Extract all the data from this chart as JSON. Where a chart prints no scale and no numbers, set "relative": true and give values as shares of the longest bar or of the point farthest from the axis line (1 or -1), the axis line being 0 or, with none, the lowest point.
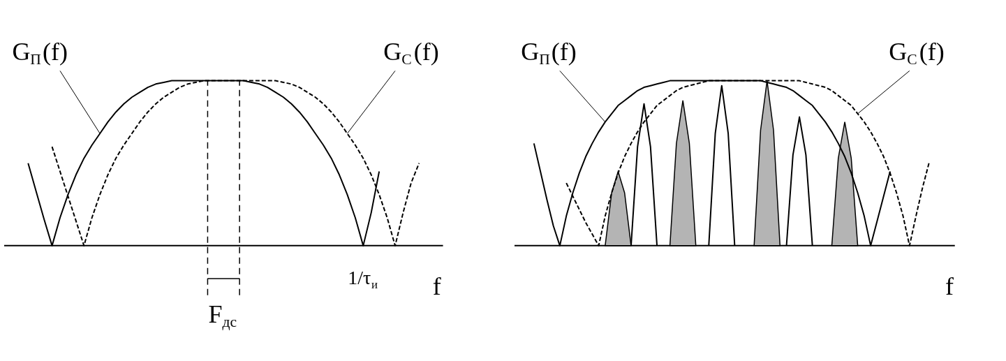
{
  "chart_data": [
    {
      "type": "line",
      "relative": true,
      "xlabel": "f",
      "categories": [
        null,
        null,
        null,
        null,
        null,
        null,
        null,
        null,
        null,
        null,
        null,
        null,
        null,
        null,
        null,
        null,
        null,
        null,
        null,
        null,
        null,
        null,
        null,
        null,
        null,
        null,
        null,
        null,
        null,
        null,
        null,
        null,
        null,
        null,
        null,
        null,
        null,
        null,
        null,
        null,
        null,
        null,
        null,
        null,
        null,
        null,
        null,
        null,
        null,
        null
      ],
      "series": [
        {
          "name": "G$_{П}$(f)",
          "color": "#000000",
          "line_style": "solid",
          "values": [
            0.5,
            0.33,
            0.16,
            0,
            0.17,
            0.31,
            0.43,
            0.53,
            0.61,
            0.68,
            0.75,
            0.81,
            0.86,
            0.9,
            0.93,
            0.96,
            0.98,
            0.99,
            1,
            1,
            1,
            1,
            1,
            1,
            1,
            1,
            1,
            1,
            0.99,
            0.98,
            0.96,
            0.93,
            0.9,
            0.86,
            0.81,
            0.75,
            0.68,
            0.61,
            0.53,
            0.43,
            0.31,
            0.17,
            0,
            0.2,
            0.45,
            null,
            null,
            null,
            null,
            null
          ]
        },
        {
          "name": "G$_{С}$(f)",
          "color": "#000000",
          "line_style": "dashed",
          "values": [
            null,
            null,
            null,
            0.6,
            0.45,
            0.3,
            0.15,
            0,
            0.17,
            0.31,
            0.43,
            0.53,
            0.61,
            0.68,
            0.75,
            0.81,
            0.86,
            0.9,
            0.93,
            0.96,
            0.98,
            0.99,
            1,
            1,
            1,
            1,
            1,
            1,
            1,
            1,
            1,
            1,
            0.99,
            0.98,
            0.96,
            0.93,
            0.9,
            0.86,
            0.81,
            0.75,
            0.68,
            0.61,
            0.53,
            0.43,
            0.31,
            0.17,
            0,
            0.2,
            0.38,
            0.5
          ]
        }
      ],
      "annotations": [
        "1/τ$_{и}$",
        "F$_{дс}$"
      ]
    },
    {
      "type": "line",
      "relative": true,
      "xlabel": "f",
      "categories": [
        null,
        null,
        null,
        null,
        null,
        null,
        null,
        null,
        null,
        null,
        null,
        null,
        null,
        null,
        null,
        null,
        null,
        null,
        null,
        null,
        null,
        null,
        null,
        null,
        null,
        null,
        null,
        null,
        null,
        null,
        null,
        null,
        null,
        null,
        null,
        null,
        null,
        null,
        null,
        null,
        null,
        null,
        null,
        null,
        null,
        null,
        null,
        null,
        null,
        null,
        null,
        null,
        null,
        null,
        null,
        null,
        null,
        null,
        null,
        null,
        null,
        null,
        null
      ],
      "series": [
        {
          "name": "G$_{П}$(f)",
          "color": "#000000",
          "line_style": "solid",
          "values": [
            0.62,
            0.45,
            0.28,
            0.12,
            0,
            0.18,
            0.32,
            0.44,
            0.54,
            0.62,
            0.69,
            0.75,
            0.8,
            0.85,
            0.88,
            0.91,
            0.94,
            0.96,
            0.97,
            0.98,
            0.99,
            1,
            1,
            1,
            1,
            1,
            1,
            1,
            1,
            1,
            1,
            1,
            1,
            1,
            1,
            1,
            0.99,
            0.98,
            0.97,
            0.96,
            0.94,
            0.91,
            0.88,
            0.85,
            0.8,
            0.75,
            0.69,
            0.62,
            0.54,
            0.44,
            0.32,
            0.18,
            0,
            0.15,
            0.3,
            0.45,
            null,
            null,
            null,
            null,
            null,
            null,
            null
          ]
        },
        {
          "name": "G$_{С}$(f)",
          "color": "#000000",
          "line_style": "dashed",
          "values": [
            null,
            null,
            null,
            null,
            null,
            0.38,
            0.3,
            0.22,
            0.14,
            0.07,
            0,
            0.18,
            0.32,
            0.44,
            0.54,
            0.62,
            0.69,
            0.75,
            0.8,
            0.85,
            0.88,
            0.91,
            0.94,
            0.96,
            0.97,
            0.98,
            0.99,
            1,
            1,
            1,
            1,
            1,
            1,
            1,
            1,
            1,
            1,
            1,
            1,
            1,
            1,
            1,
            0.99,
            0.98,
            0.97,
            0.96,
            0.94,
            0.91,
            0.88,
            0.85,
            0.8,
            0.75,
            0.69,
            0.62,
            0.54,
            0.44,
            0.32,
            0.18,
            0,
            0.18,
            0.35,
            0.5,
            null
          ]
        },
        {
          "type": "area",
          "color": "#b4b4b4",
          "values": [
            null,
            null,
            null,
            null,
            null,
            null,
            null,
            null,
            null,
            null,
            null,
            0,
            0.32,
            0.45,
            0.32,
            0,
            null,
            null,
            null,
            null,
            null,
            0,
            0.62,
            0.88,
            0.62,
            0,
            null,
            null,
            null,
            null,
            null,
            null,
            null,
            null,
            0,
            0.7,
            1,
            0.7,
            0,
            null,
            null,
            null,
            null,
            null,
            null,
            null,
            0,
            0.53,
            0.75,
            0.53,
            0,
            null,
            null,
            null,
            null,
            null,
            null,
            null,
            null,
            null,
            null,
            null,
            null
          ]
        },
        {
          "type": "line",
          "color": "#000000",
          "line_style": "solid",
          "values": [
            null,
            null,
            null,
            null,
            null,
            null,
            null,
            null,
            null,
            null,
            null,
            null,
            null,
            null,
            null,
            0,
            0.6,
            0.86,
            0.6,
            0,
            null,
            null,
            null,
            null,
            null,
            null,
            null,
            0,
            0.68,
            0.97,
            0.68,
            0,
            null,
            null,
            null,
            null,
            null,
            null,
            null,
            0,
            0.55,
            0.78,
            0.55,
            0,
            null,
            null,
            null,
            null,
            null,
            null,
            null,
            null,
            null,
            null,
            null,
            null,
            null,
            null,
            null,
            null,
            null,
            null,
            null
          ]
        }
      ]
    }
  ]
}
